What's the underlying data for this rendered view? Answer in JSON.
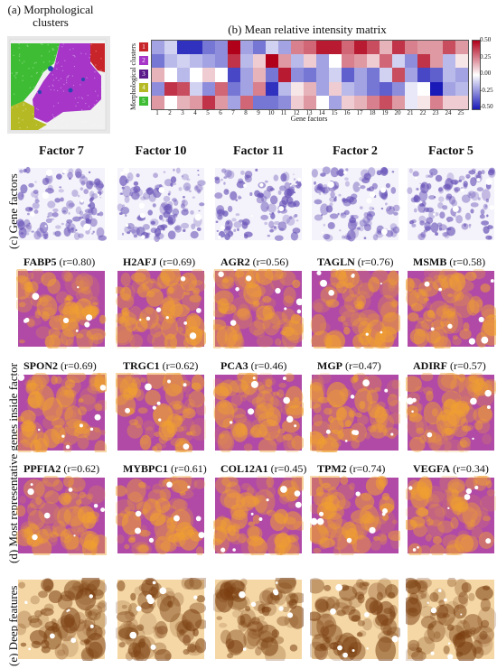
{
  "panel_a": {
    "title_line1": "(a) Morphological",
    "title_line2": "clusters",
    "cluster_colors": [
      "#c8252a",
      "#a635c8",
      "#2b46b0",
      "#b5ba24",
      "#3ebd34"
    ]
  },
  "panel_b": {
    "title": "(b) Mean relative intensity matrix",
    "ylabel": "Morphological clusters",
    "xlabel": "Gene factors",
    "cluster_labels": [
      "1",
      "2",
      "3",
      "4",
      "5"
    ],
    "cluster_colors": [
      "#c8252a",
      "#a635c8",
      "#5b1b8a",
      "#b5ba24",
      "#3ebd34"
    ],
    "colorbar_ticks": [
      "0.50",
      "0.25",
      "0.00",
      "-0.25",
      "-0.50"
    ]
  },
  "chart_data": {
    "type": "heatmap",
    "title": "(b) Mean relative intensity matrix",
    "xlabel": "Gene factors",
    "ylabel": "Morphological clusters",
    "x": [
      "1",
      "2",
      "3",
      "4",
      "5",
      "6",
      "7",
      "8",
      "9",
      "10",
      "11",
      "12",
      "13",
      "14",
      "15",
      "16",
      "17",
      "18",
      "19",
      "20",
      "21",
      "22",
      "23",
      "24",
      "25"
    ],
    "y": [
      "1",
      "2",
      "3",
      "4",
      "5"
    ],
    "zlim": [
      -0.5,
      0.5
    ],
    "values": [
      [
        -0.2,
        -0.1,
        -0.45,
        -0.45,
        -0.3,
        -0.25,
        0.5,
        -0.2,
        -0.3,
        -0.1,
        -0.2,
        0.25,
        0.3,
        0.45,
        0.45,
        0.3,
        0.45,
        0.35,
        0.15,
        0.4,
        0.25,
        0.2,
        0.2,
        0.35,
        0.2
      ],
      [
        -0.3,
        -0.15,
        -0.1,
        -0.15,
        -0.2,
        -0.25,
        0.4,
        -0.15,
        0.1,
        0.5,
        0.2,
        -0.15,
        0.1,
        -0.2,
        0.0,
        0.25,
        0.2,
        0.1,
        0.3,
        -0.1,
        -0.25,
        0.4,
        0.2,
        -0.15,
        0.05
      ],
      [
        0.15,
        0.0,
        -0.15,
        0.0,
        0.1,
        0.0,
        -0.4,
        -0.2,
        0.15,
        -0.3,
        0.45,
        -0.25,
        -0.3,
        -0.2,
        -0.1,
        -0.35,
        -0.2,
        -0.3,
        -0.1,
        0.35,
        -0.2,
        -0.4,
        -0.35,
        -0.15,
        -0.2
      ],
      [
        -0.25,
        0.4,
        0.35,
        -0.1,
        -0.25,
        0.3,
        -0.3,
        -0.2,
        0.25,
        -0.45,
        -0.15,
        0.05,
        0.15,
        -0.2,
        0.1,
        -0.15,
        -0.2,
        -0.3,
        -0.35,
        -0.25,
        -0.05,
        0.0,
        -0.5,
        -0.2,
        -0.15
      ],
      [
        0.2,
        0.0,
        0.15,
        0.2,
        0.4,
        0.2,
        -0.2,
        0.3,
        -0.3,
        -0.3,
        -0.25,
        0.1,
        0.2,
        0.0,
        -0.2,
        0.1,
        0.15,
        0.25,
        0.35,
        0.2,
        -0.05,
        0.05,
        0.25,
        0.1,
        0.1
      ]
    ]
  },
  "factors": [
    "Factor 7",
    "Factor 10",
    "Factor 11",
    "Factor 2",
    "Factor 5"
  ],
  "panel_labels": {
    "c": "(c) Gene factors",
    "d": "(d) Most representative genes inside factor",
    "e": "(e) Deep features"
  },
  "gene_rows": [
    [
      {
        "gene": "FABP5",
        "r": "(r=0.80)"
      },
      {
        "gene": "H2AFJ",
        "r": "(r=0.69)"
      },
      {
        "gene": "AGR2",
        "r": "(r=0.56)"
      },
      {
        "gene": "TAGLN",
        "r": "(r=0.76)"
      },
      {
        "gene": "MSMB",
        "r": "(r=0.58)"
      }
    ],
    [
      {
        "gene": "SPON2",
        "r": "(r=0.69)"
      },
      {
        "gene": "TRGC1",
        "r": "(r=0.62)"
      },
      {
        "gene": "PCA3",
        "r": "(r=0.46)"
      },
      {
        "gene": "MGP",
        "r": "(r=0.47)"
      },
      {
        "gene": "ADIRF",
        "r": "(r=0.57)"
      }
    ],
    [
      {
        "gene": "PPFIA2",
        "r": "(r=0.62)"
      },
      {
        "gene": "MYBPC1",
        "r": "(r=0.61)"
      },
      {
        "gene": "COL12A1",
        "r": "(r=0.45)"
      },
      {
        "gene": "TPM2",
        "r": "(r=0.74)"
      },
      {
        "gene": "VEGFA",
        "r": "(r=0.34)"
      }
    ]
  ],
  "colors": {
    "heat_neg": "#1a1ab8",
    "heat_pos": "#b0001a",
    "gene_base": "#b04aa6",
    "gene_hot": "#f0a030",
    "deep_base": "#f5d7a6",
    "deep_hot": "#7a3e10",
    "factor_dot": "#6a55b8"
  }
}
